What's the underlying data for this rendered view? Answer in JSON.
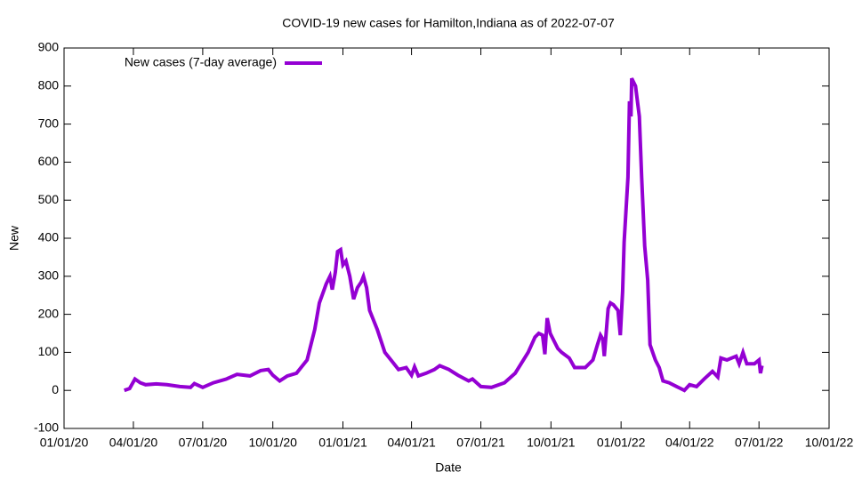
{
  "chart_data": {
    "type": "line",
    "title": "COVID-19 new cases for Hamilton,Indiana as of 2022-07-07",
    "xlabel": "Date",
    "ylabel": "New",
    "x": [
      "03/20/20",
      "03/27/20",
      "04/03/20",
      "04/10/20",
      "04/17/20",
      "05/01/20",
      "05/15/20",
      "06/01/20",
      "06/15/20",
      "06/20/20",
      "07/01/20",
      "07/15/20",
      "08/01/20",
      "08/15/20",
      "09/01/20",
      "09/15/20",
      "09/25/20",
      "10/01/20",
      "10/10/20",
      "10/20/20",
      "11/01/20",
      "11/15/20",
      "11/25/20",
      "12/01/20",
      "12/10/20",
      "12/15/20",
      "12/18/20",
      "12/22/20",
      "12/25/20",
      "12/29/20",
      "01/01/21",
      "01/05/21",
      "01/10/21",
      "01/15/21",
      "01/20/21",
      "01/25/21",
      "01/28/21",
      "02/01/21",
      "02/05/21",
      "02/15/21",
      "02/25/21",
      "03/05/21",
      "03/15/21",
      "03/25/21",
      "04/01/21",
      "04/05/21",
      "04/10/21",
      "04/20/21",
      "05/01/21",
      "05/08/21",
      "05/20/21",
      "06/01/21",
      "06/15/21",
      "06/20/21",
      "07/01/21",
      "07/15/21",
      "08/01/21",
      "08/15/21",
      "09/01/21",
      "09/10/21",
      "09/15/21",
      "09/20/21",
      "09/23/21",
      "09/26/21",
      "09/30/21",
      "10/05/21",
      "10/10/21",
      "10/15/21",
      "10/25/21",
      "11/01/21",
      "11/15/21",
      "11/25/21",
      "12/01/21",
      "12/05/21",
      "12/08/21",
      "12/10/21",
      "12/15/21",
      "12/18/21",
      "12/22/21",
      "12/28/21",
      "12/31/21",
      "01/03/22",
      "01/05/22",
      "01/10/22",
      "01/12/22",
      "01/14/22",
      "01/15/22",
      "01/20/22",
      "01/25/22",
      "01/28/22",
      "02/01/22",
      "02/05/22",
      "02/08/22",
      "02/15/22",
      "02/20/22",
      "02/25/22",
      "03/05/22",
      "03/15/22",
      "03/25/22",
      "04/01/22",
      "04/10/22",
      "04/20/22",
      "05/01/22",
      "05/08/22",
      "05/12/22",
      "05/20/22",
      "06/01/22",
      "06/05/22",
      "06/10/22",
      "06/15/22",
      "06/25/22",
      "07/01/22",
      "07/03/22",
      "07/05/22"
    ],
    "series": [
      {
        "name": "New cases (7-day average)",
        "color": "#9400d3",
        "values": [
          0,
          5,
          30,
          20,
          15,
          17,
          15,
          10,
          8,
          18,
          8,
          20,
          30,
          42,
          38,
          52,
          55,
          40,
          25,
          38,
          45,
          80,
          160,
          230,
          280,
          300,
          265,
          310,
          365,
          370,
          330,
          340,
          300,
          240,
          270,
          285,
          300,
          270,
          210,
          160,
          100,
          80,
          55,
          60,
          40,
          62,
          38,
          45,
          55,
          65,
          55,
          40,
          25,
          30,
          10,
          8,
          20,
          45,
          100,
          140,
          150,
          145,
          95,
          190,
          150,
          130,
          110,
          100,
          85,
          60,
          60,
          80,
          120,
          145,
          135,
          90,
          215,
          230,
          225,
          210,
          145,
          260,
          390,
          560,
          760,
          720,
          820,
          800,
          720,
          560,
          380,
          290,
          120,
          80,
          60,
          25,
          20,
          10,
          0,
          15,
          10,
          30,
          50,
          35,
          85,
          80,
          90,
          70,
          100,
          70,
          70,
          80,
          45,
          65
        ]
      }
    ],
    "xlim": [
      "01/01/20",
      "10/01/22"
    ],
    "xticks": [
      "01/01/20",
      "04/01/20",
      "07/01/20",
      "10/01/20",
      "01/01/21",
      "04/01/21",
      "07/01/21",
      "10/01/21",
      "01/01/22",
      "04/01/22",
      "07/01/22",
      "10/01/22"
    ],
    "ylim": [
      -100,
      900
    ],
    "yticks": [
      -100,
      0,
      100,
      200,
      300,
      400,
      500,
      600,
      700,
      800,
      900
    ],
    "legend": "top-left"
  }
}
